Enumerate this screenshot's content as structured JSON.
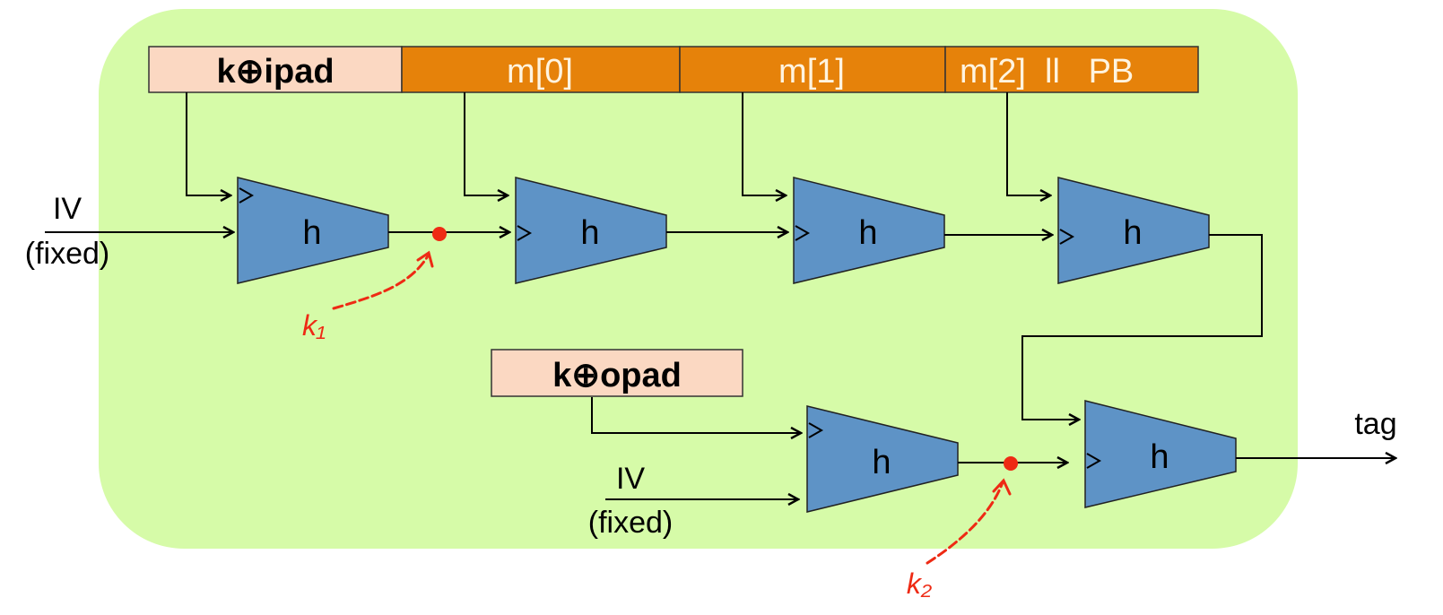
{
  "colors": {
    "background_panel": "#d6fba8",
    "key_pad_box": "#fbd8c2",
    "message_box": "#e6820a",
    "hash_block": "#5e93c6",
    "annotation": "#ee2a14"
  },
  "top_row": {
    "ipad_label": "k⊕ipad",
    "m0_label": "m[0]",
    "m1_label": "m[1]",
    "m2_label": "m[2]  ll   PB"
  },
  "inputs": {
    "iv_top_label": "IV",
    "iv_top_sub": "(fixed)",
    "iv_bottom_label": "IV",
    "iv_bottom_sub": "(fixed)"
  },
  "opad_label": "k⊕opad",
  "hash_label": "h",
  "output_label": "tag",
  "annotations": {
    "k1": "k₁",
    "k2": "k₂"
  }
}
